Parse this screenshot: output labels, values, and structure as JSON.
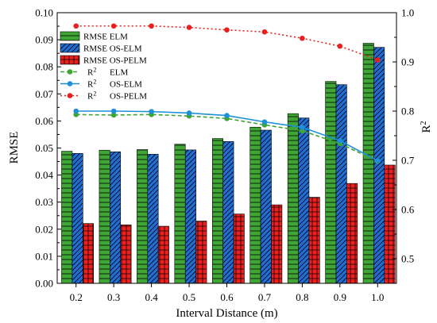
{
  "chart_data": {
    "type": "bar",
    "xlabel": "Interval Distance (m)",
    "ylabel": "RMSE",
    "y2label_base": "R",
    "y2label_sup": "2",
    "categories": [
      "0.2",
      "0.3",
      "0.4",
      "0.5",
      "0.6",
      "0.7",
      "0.8",
      "0.9",
      "1.0"
    ],
    "ylim": [
      0,
      0.1
    ],
    "y_ticks": [
      "0.00",
      "0.01",
      "0.02",
      "0.03",
      "0.04",
      "0.05",
      "0.06",
      "0.07",
      "0.08",
      "0.09",
      "0.10"
    ],
    "y2lim": [
      0.45,
      1.0
    ],
    "y2_ticks": [
      "0.5",
      "0.6",
      "0.7",
      "0.8",
      "0.9",
      "1.0"
    ],
    "bar_series": [
      {
        "name": "RMSE ELM",
        "color": "#3fa535",
        "hatch": "horizontal",
        "values": [
          0.0488,
          0.0492,
          0.0494,
          0.0514,
          0.0535,
          0.0577,
          0.0627,
          0.0746,
          0.0887
        ]
      },
      {
        "name": "RMSE OS-ELM",
        "color": "#1f6fd6",
        "hatch": "diagonal",
        "values": [
          0.048,
          0.0486,
          0.0477,
          0.0493,
          0.0524,
          0.0566,
          0.0611,
          0.0734,
          0.0872
        ]
      },
      {
        "name": "RMSE OS-PELM",
        "color": "#e8201f",
        "hatch": "grid",
        "values": [
          0.0221,
          0.0216,
          0.0211,
          0.023,
          0.0256,
          0.029,
          0.0318,
          0.0369,
          0.0437
        ]
      }
    ],
    "line_series": [
      {
        "name_base": "R",
        "name_sup": "2",
        "name_suffix": "ELM",
        "color": "#3fa535",
        "style": "dashed",
        "values": [
          0.793,
          0.792,
          0.793,
          0.79,
          0.785,
          0.772,
          0.76,
          0.734,
          0.698
        ]
      },
      {
        "name_base": "R",
        "name_sup": "2",
        "name_suffix": "OS-ELM",
        "color": "#1e90d8",
        "style": "solid",
        "values": [
          0.8,
          0.8,
          0.799,
          0.796,
          0.791,
          0.778,
          0.767,
          0.74,
          0.699
        ]
      },
      {
        "name_base": "R",
        "name_sup": "2",
        "name_suffix": "OS-PELM",
        "color": "#e8201f",
        "style": "dotted",
        "values": [
          0.973,
          0.973,
          0.973,
          0.97,
          0.965,
          0.961,
          0.948,
          0.932,
          0.904
        ]
      }
    ],
    "legend_position": "top-left",
    "grid": false
  }
}
